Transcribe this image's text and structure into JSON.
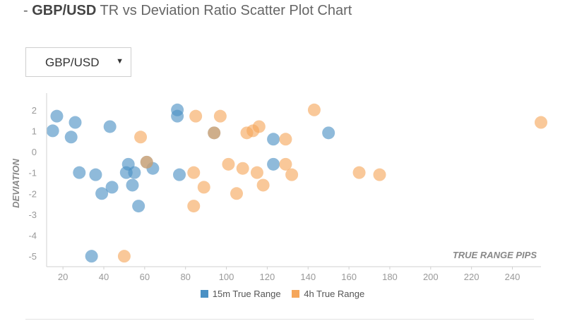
{
  "header": {
    "prefix": "- ",
    "pair": "GBP/USD",
    "rest": " TR vs Deviation Ratio Scatter Plot Chart"
  },
  "selector": {
    "value": "GBP/USD",
    "arrow_icon": "triangle-down-icon"
  },
  "colors": {
    "series_15m": "#4a90c4",
    "series_4h": "#f5a65b"
  },
  "chart_data": {
    "type": "scatter",
    "title": "",
    "xlabel": "TRUE RANGE PIPS",
    "ylabel": "DEVIATION",
    "xlim": [
      12,
      254
    ],
    "ylim": [
      -5.5,
      2.6
    ],
    "x_ticks": [
      "20",
      "40",
      "60",
      "80",
      "100",
      "120",
      "140",
      "160",
      "180",
      "200",
      "220",
      "240"
    ],
    "y_ticks": [
      "2",
      "1",
      "0",
      "-1",
      "-2",
      "-3",
      "-4",
      "-5"
    ],
    "grid": false,
    "legend_position": "bottom-center",
    "series": [
      {
        "name": "15m True Range",
        "points": [
          [
            15,
            1.0
          ],
          [
            17,
            1.7
          ],
          [
            24,
            0.7
          ],
          [
            26,
            1.4
          ],
          [
            28,
            -1.0
          ],
          [
            36,
            -1.1
          ],
          [
            39,
            -2.0
          ],
          [
            43,
            1.2
          ],
          [
            44,
            -1.7
          ],
          [
            51,
            -1.0
          ],
          [
            52,
            -0.6
          ],
          [
            54,
            -1.6
          ],
          [
            55,
            -1.0
          ],
          [
            57,
            -2.6
          ],
          [
            61,
            -0.5
          ],
          [
            64,
            -0.8
          ],
          [
            76,
            2.0
          ],
          [
            76,
            1.7
          ],
          [
            77,
            -1.1
          ],
          [
            94,
            0.9
          ],
          [
            123,
            0.6
          ],
          [
            123,
            -0.6
          ],
          [
            150,
            0.9
          ],
          [
            34,
            -5.0
          ]
        ]
      },
      {
        "name": "4h True Range",
        "points": [
          [
            50,
            -5.0
          ],
          [
            58,
            0.7
          ],
          [
            61,
            -0.5
          ],
          [
            84,
            -1.0
          ],
          [
            84,
            -2.6
          ],
          [
            85,
            1.7
          ],
          [
            89,
            -1.7
          ],
          [
            94,
            0.9
          ],
          [
            97,
            1.7
          ],
          [
            101,
            -0.6
          ],
          [
            105,
            -2.0
          ],
          [
            108,
            -0.8
          ],
          [
            110,
            0.9
          ],
          [
            113,
            1.0
          ],
          [
            115,
            -1.0
          ],
          [
            116,
            1.2
          ],
          [
            118,
            -1.6
          ],
          [
            129,
            -0.6
          ],
          [
            129,
            0.6
          ],
          [
            132,
            -1.1
          ],
          [
            143,
            2.0
          ],
          [
            165,
            -1.0
          ],
          [
            175,
            -1.1
          ],
          [
            254,
            1.4
          ]
        ]
      }
    ]
  }
}
